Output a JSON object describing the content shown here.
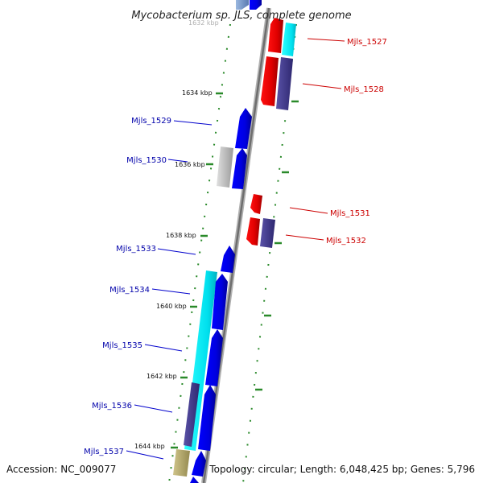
{
  "title": "Mycobacterium sp. JLS, complete genome",
  "footer": {
    "accession": "Accession: NC_009077",
    "topology": "Topology: circular; Length: 6,048,425 bp; Genes: 5,796"
  },
  "kbp_labels": {
    "k1632": "1632 kbp",
    "k1634": "1634 kbp",
    "k1636": "1636 kbp",
    "k1638": "1638 kbp",
    "k1640": "1640 kbp",
    "k1642": "1642 kbp",
    "k1644": "1644 kbp"
  },
  "genes": {
    "g1527": "Mjls_1527",
    "g1528": "Mjls_1528",
    "g1529": "Mjls_1529",
    "g1530": "Mjls_1530",
    "g1531": "Mjls_1531",
    "g1532": "Mjls_1532",
    "g1533": "Mjls_1533",
    "g1534": "Mjls_1534",
    "g1535": "Mjls_1535",
    "g1536": "Mjls_1536",
    "g1537": "Mjls_1537"
  },
  "colors": {
    "forward_label": "#0000aa",
    "reverse_label": "#cc0000",
    "forward_gene": "#0000ee",
    "reverse_gene": "#ee0000",
    "cyan_feature": "#00e6f0",
    "purple_feature": "#4a4290",
    "grey_feature": "#b8b8b8",
    "olive_feature": "#b5aa70",
    "tick_green": "#2a8a2a",
    "backbone": "#888888"
  }
}
